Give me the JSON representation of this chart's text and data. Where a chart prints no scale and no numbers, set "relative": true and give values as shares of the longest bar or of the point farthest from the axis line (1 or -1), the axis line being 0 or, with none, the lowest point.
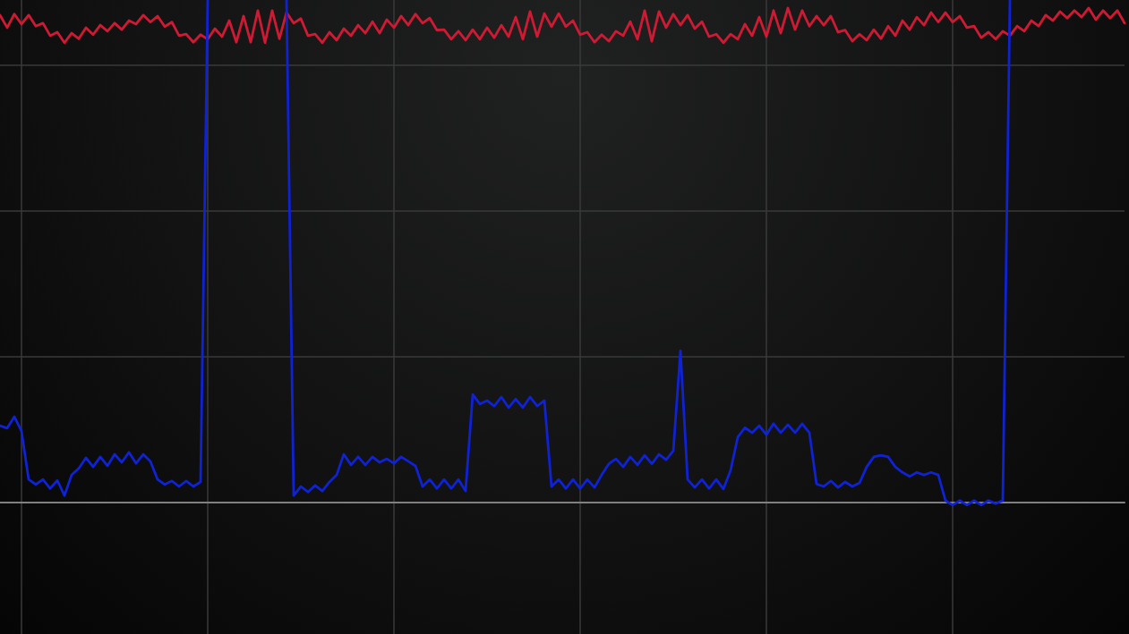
{
  "chart_data": {
    "type": "line",
    "relative": true,
    "grid": true,
    "tick_labels": false,
    "categories": [
      null,
      null,
      null,
      null,
      null,
      null,
      null,
      null,
      null,
      null,
      null,
      null,
      null,
      null,
      null,
      null,
      null,
      null,
      null,
      null,
      null,
      null,
      null,
      null,
      null,
      null,
      null,
      null,
      null,
      null,
      null,
      null,
      null,
      null,
      null,
      null,
      null,
      null,
      null,
      null,
      null,
      null,
      null,
      null,
      null,
      null,
      null,
      null,
      null,
      null,
      null,
      null,
      null,
      null,
      null,
      null,
      null,
      null,
      null,
      null,
      null,
      null,
      null,
      null,
      null,
      null,
      null,
      null,
      null,
      null,
      null,
      null,
      null,
      null,
      null,
      null,
      null,
      null,
      null,
      null,
      null,
      null,
      null,
      null,
      null,
      null,
      null,
      null,
      null,
      null,
      null,
      null,
      null,
      null,
      null,
      null,
      null,
      null,
      null,
      null,
      null,
      null,
      null,
      null,
      null,
      null,
      null,
      null,
      null,
      null,
      null,
      null,
      null,
      null,
      null,
      null,
      null,
      null,
      null,
      null,
      null,
      null,
      null,
      null,
      null,
      null,
      null,
      null,
      null,
      null,
      null,
      null,
      null,
      null,
      null,
      null,
      null,
      null,
      null,
      null,
      null,
      null,
      null,
      null,
      null,
      null,
      null,
      null,
      null,
      null,
      null,
      null,
      null,
      null,
      null,
      null,
      null,
      null
    ],
    "series": [
      {
        "color": "#d01a34",
        "values": [
          0.97,
          0.945,
          0.972,
          0.952,
          0.97,
          0.948,
          0.954,
          0.929,
          0.936,
          0.915,
          0.934,
          0.923,
          0.945,
          0.931,
          0.95,
          0.938,
          0.954,
          0.941,
          0.959,
          0.952,
          0.97,
          0.956,
          0.968,
          0.947,
          0.956,
          0.929,
          0.932,
          0.916,
          0.931,
          0.922,
          0.943,
          0.927,
          0.959,
          0.916,
          0.968,
          0.916,
          0.979,
          0.915,
          0.979,
          0.923,
          0.975,
          0.954,
          0.963,
          0.929,
          0.932,
          0.915,
          0.936,
          0.92,
          0.943,
          0.929,
          0.95,
          0.934,
          0.957,
          0.934,
          0.961,
          0.945,
          0.968,
          0.95,
          0.972,
          0.954,
          0.964,
          0.94,
          0.941,
          0.922,
          0.938,
          0.92,
          0.941,
          0.922,
          0.945,
          0.925,
          0.95,
          0.927,
          0.966,
          0.922,
          0.977,
          0.927,
          0.973,
          0.947,
          0.973,
          0.947,
          0.959,
          0.931,
          0.936,
          0.916,
          0.931,
          0.918,
          0.938,
          0.929,
          0.957,
          0.922,
          0.979,
          0.918,
          0.977,
          0.945,
          0.972,
          0.95,
          0.97,
          0.943,
          0.957,
          0.927,
          0.932,
          0.915,
          0.932,
          0.922,
          0.952,
          0.929,
          0.966,
          0.927,
          0.979,
          0.934,
          0.984,
          0.941,
          0.979,
          0.948,
          0.968,
          0.95,
          0.968,
          0.936,
          0.94,
          0.918,
          0.932,
          0.92,
          0.941,
          0.923,
          0.948,
          0.929,
          0.959,
          0.941,
          0.966,
          0.95,
          0.975,
          0.956,
          0.975,
          0.956,
          0.968,
          0.945,
          0.948,
          0.925,
          0.936,
          0.922,
          0.938,
          0.929,
          0.948,
          0.938,
          0.959,
          0.948,
          0.97,
          0.959,
          0.977,
          0.964,
          0.979,
          0.966,
          0.984,
          0.961,
          0.979,
          0.964,
          0.979,
          0.954
        ]
      },
      {
        "color": "#0f22d4",
        "values": [
          0.153,
          0.148,
          0.171,
          0.142,
          0.046,
          0.036,
          0.046,
          0.028,
          0.044,
          0.014,
          0.055,
          0.068,
          0.089,
          0.071,
          0.091,
          0.073,
          0.096,
          0.08,
          0.1,
          0.078,
          0.096,
          0.082,
          0.046,
          0.036,
          0.043,
          0.032,
          0.043,
          0.032,
          0.041,
          1,
          null,
          null,
          null,
          null,
          null,
          null,
          null,
          null,
          null,
          null,
          1,
          0.014,
          0.032,
          0.021,
          0.034,
          0.023,
          0.041,
          0.055,
          0.096,
          0.075,
          0.091,
          0.075,
          0.091,
          0.08,
          0.087,
          0.078,
          0.091,
          0.082,
          0.073,
          0.032,
          0.046,
          0.028,
          0.046,
          0.028,
          0.046,
          0.023,
          0.215,
          0.196,
          0.203,
          0.192,
          0.21,
          0.189,
          0.206,
          0.189,
          0.21,
          0.192,
          0.203,
          0.032,
          0.046,
          0.028,
          0.046,
          0.028,
          0.046,
          0.03,
          0.055,
          0.077,
          0.087,
          0.071,
          0.091,
          0.075,
          0.094,
          0.077,
          0.096,
          0.085,
          0.103,
          0.302,
          0.046,
          0.03,
          0.046,
          0.028,
          0.046,
          0.027,
          0.064,
          0.13,
          0.149,
          0.139,
          0.153,
          0.135,
          0.157,
          0.139,
          0.155,
          0.139,
          0.157,
          0.139,
          0.037,
          0.032,
          0.043,
          0.03,
          0.041,
          0.032,
          0.039,
          0.071,
          0.091,
          0.094,
          0.091,
          0.071,
          0.06,
          0.052,
          0.06,
          0.055,
          0.06,
          0.055,
          0.004,
          -0.005,
          0.004,
          -0.005,
          0.004,
          -0.005,
          0.004,
          -0.002,
          0.004,
          1,
          null,
          null,
          null,
          null,
          null,
          null,
          null,
          null,
          null,
          null,
          null,
          null,
          null,
          null,
          null,
          null
        ]
      }
    ]
  }
}
